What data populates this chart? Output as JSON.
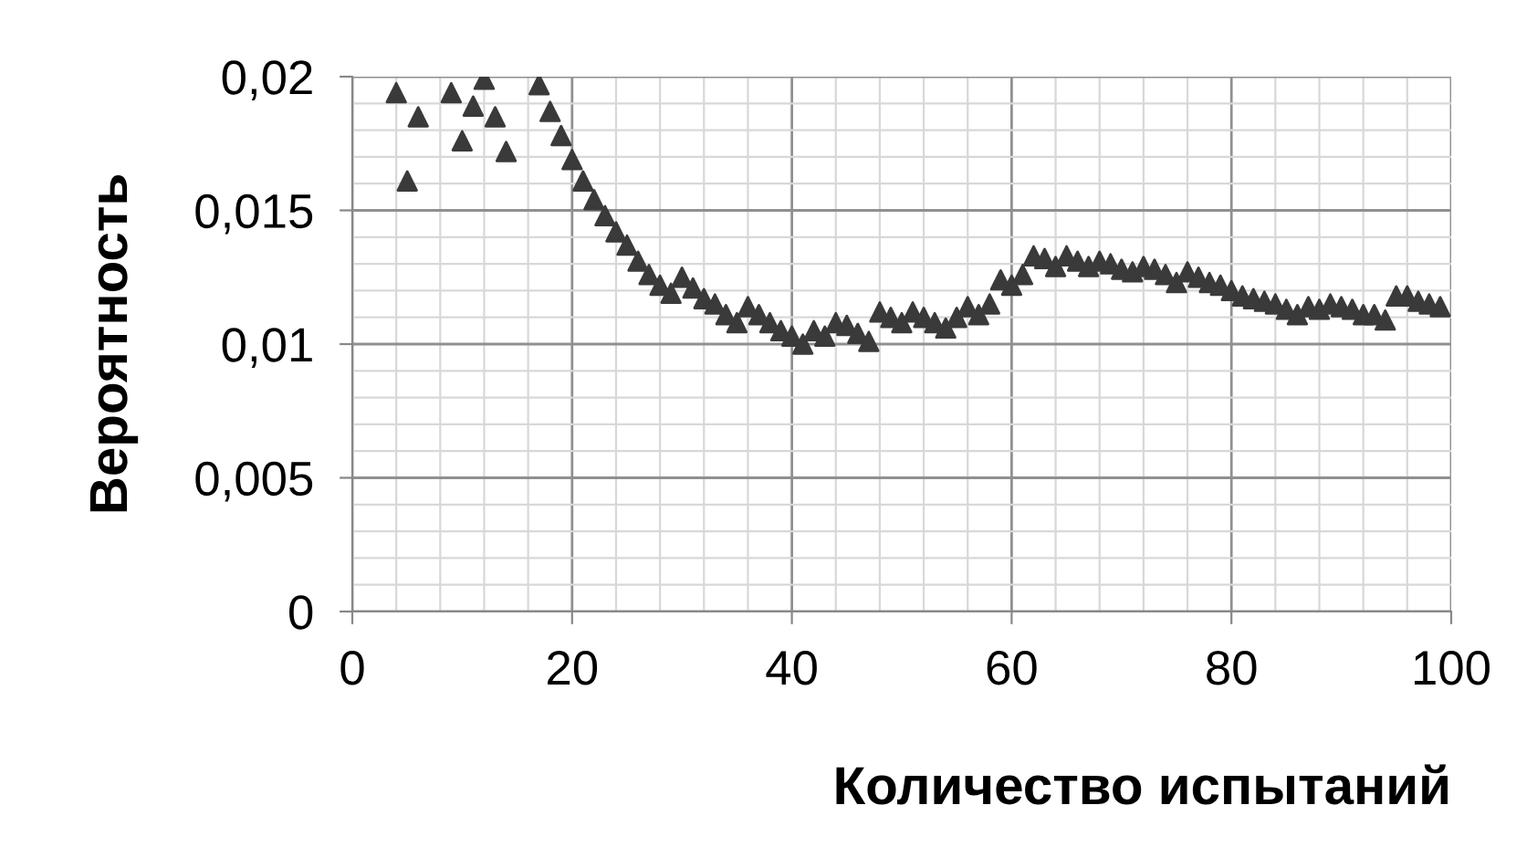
{
  "chart_data": {
    "type": "scatter",
    "xlabel": "Количество испытаний",
    "ylabel": "Вероятность",
    "x": [
      4,
      5,
      6,
      9,
      10,
      11,
      12,
      13,
      14,
      17,
      18,
      19,
      20,
      21,
      22,
      23,
      24,
      25,
      26,
      27,
      28,
      29,
      30,
      31,
      32,
      33,
      34,
      35,
      36,
      37,
      38,
      39,
      40,
      41,
      42,
      43,
      44,
      45,
      46,
      47,
      48,
      49,
      50,
      51,
      52,
      53,
      54,
      55,
      56,
      57,
      58,
      59,
      60,
      61,
      62,
      63,
      64,
      65,
      66,
      67,
      68,
      69,
      70,
      71,
      72,
      73,
      74,
      75,
      76,
      77,
      78,
      79,
      80,
      81,
      82,
      83,
      84,
      85,
      86,
      87,
      88,
      89,
      90,
      91,
      92,
      93,
      94,
      95,
      96,
      97,
      98,
      99
    ],
    "series": [
      {
        "color": "#3a3a3a",
        "values": [
          0.0194,
          0.0161,
          0.0185,
          0.0194,
          0.0176,
          0.0189,
          0.0199,
          0.0185,
          0.0172,
          0.0197,
          0.0187,
          0.0178,
          0.0169,
          0.0161,
          0.0154,
          0.0148,
          0.0142,
          0.0137,
          0.0131,
          0.0126,
          0.0122,
          0.0119,
          0.0125,
          0.0121,
          0.0117,
          0.0115,
          0.0111,
          0.0108,
          0.0114,
          0.0111,
          0.0108,
          0.0105,
          0.0103,
          0.01,
          0.0105,
          0.0103,
          0.0108,
          0.0107,
          0.0104,
          0.0101,
          0.0112,
          0.011,
          0.0108,
          0.0112,
          0.011,
          0.0108,
          0.0106,
          0.011,
          0.0114,
          0.0111,
          0.0115,
          0.0124,
          0.0122,
          0.0126,
          0.0133,
          0.0132,
          0.0129,
          0.0133,
          0.0131,
          0.0129,
          0.0131,
          0.013,
          0.0128,
          0.0127,
          0.0129,
          0.0128,
          0.0126,
          0.0123,
          0.0127,
          0.0125,
          0.0123,
          0.0122,
          0.012,
          0.0118,
          0.0117,
          0.0116,
          0.0115,
          0.0113,
          0.0111,
          0.0114,
          0.0113,
          0.0115,
          0.0114,
          0.0113,
          0.0111,
          0.0111,
          0.0109,
          0.0118,
          0.0118,
          0.0116,
          0.0115,
          0.0114
        ]
      }
    ],
    "xlim": [
      0,
      100
    ],
    "xticks": [
      0,
      20,
      40,
      60,
      80,
      100
    ],
    "ylim": [
      0,
      0.02
    ],
    "yticks": [
      {
        "value": 0,
        "label": "0"
      },
      {
        "value": 0.005,
        "label": "0,005"
      },
      {
        "value": 0.01,
        "label": "0,01"
      },
      {
        "value": 0.015,
        "label": "0,015"
      },
      {
        "value": 0.02,
        "label": "0,02"
      }
    ],
    "grid": true,
    "marker": "triangle",
    "legend": false
  }
}
